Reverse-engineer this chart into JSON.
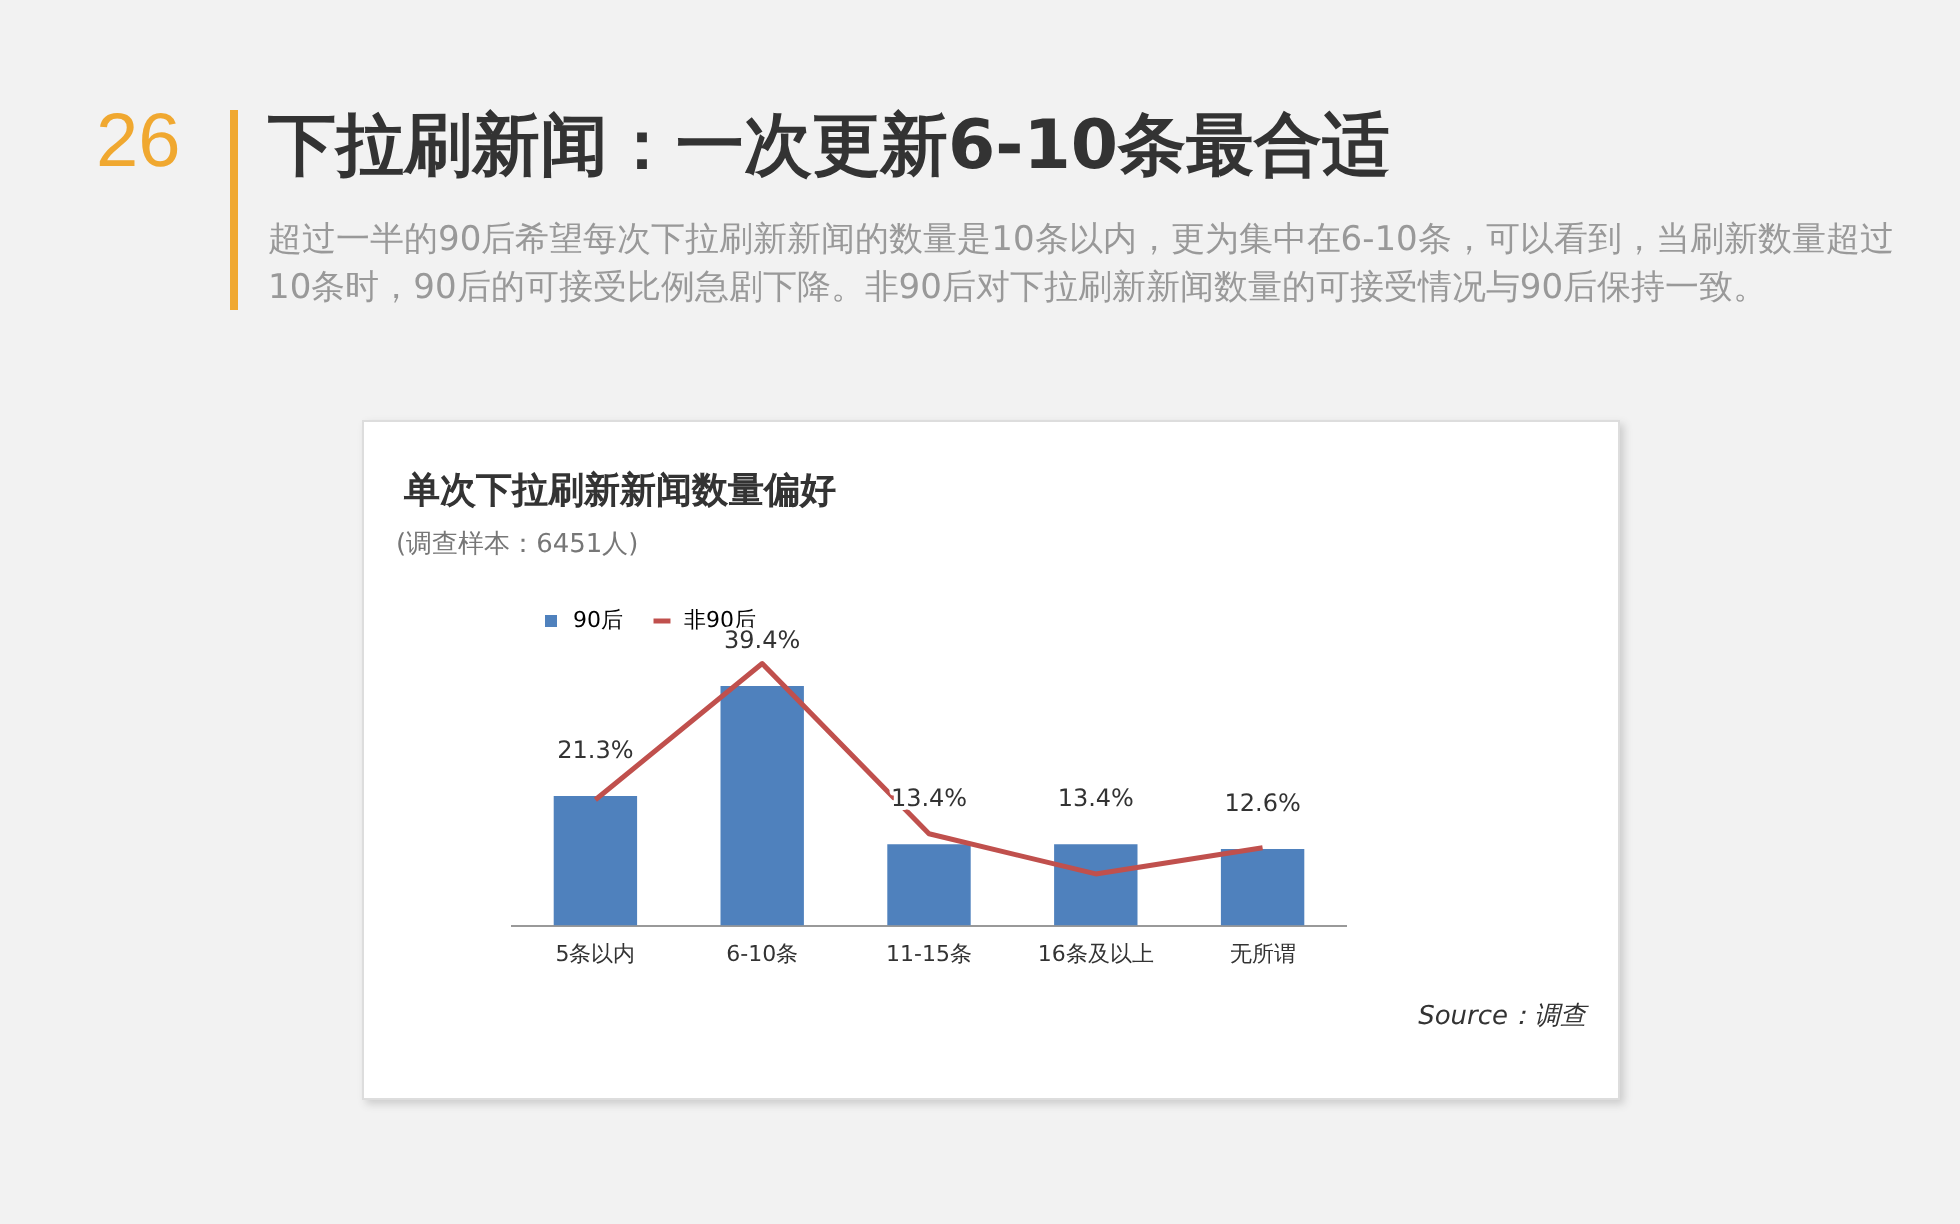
{
  "chart_data": {
    "type": "bar",
    "title": "下拉刷新闻：一次更新6-10条最合适",
    "subtitle": "超过一半的90后希望每次下拉刷新新闻的数量是10条以内，更为集中在6-10条，可以看到，当刷新数量超过10条时，90后的可接受比例急剧下降。非90后对下拉刷新新闻数量的可接受情况与90后保持一致。",
    "annotations": [
      "26",
      "单次下拉刷新新闻数量偏好",
      "(调查样本：6451人)",
      "Source：调查"
    ],
    "categories": [
      "5条以内",
      "6-10条",
      "11-15条",
      "16条及以上",
      "无所谓"
    ],
    "series": [
      {
        "name": "90后",
        "color": "#4f81bd",
        "values": [
          21.3,
          39.4,
          13.4,
          13.4,
          12.6
        ],
        "value_labels": [
          "21.3%",
          "39.4%",
          "13.4%",
          "13.4%",
          "12.6%"
        ]
      },
      {
        "name": "非90后",
        "type": "line",
        "color": "#c0504d",
        "values": [
          20.7,
          43.1,
          15.1,
          8.5,
          12.8
        ]
      }
    ],
    "legend": "top left",
    "grid": false,
    "tick_labels": "x",
    "marker": "none"
  }
}
